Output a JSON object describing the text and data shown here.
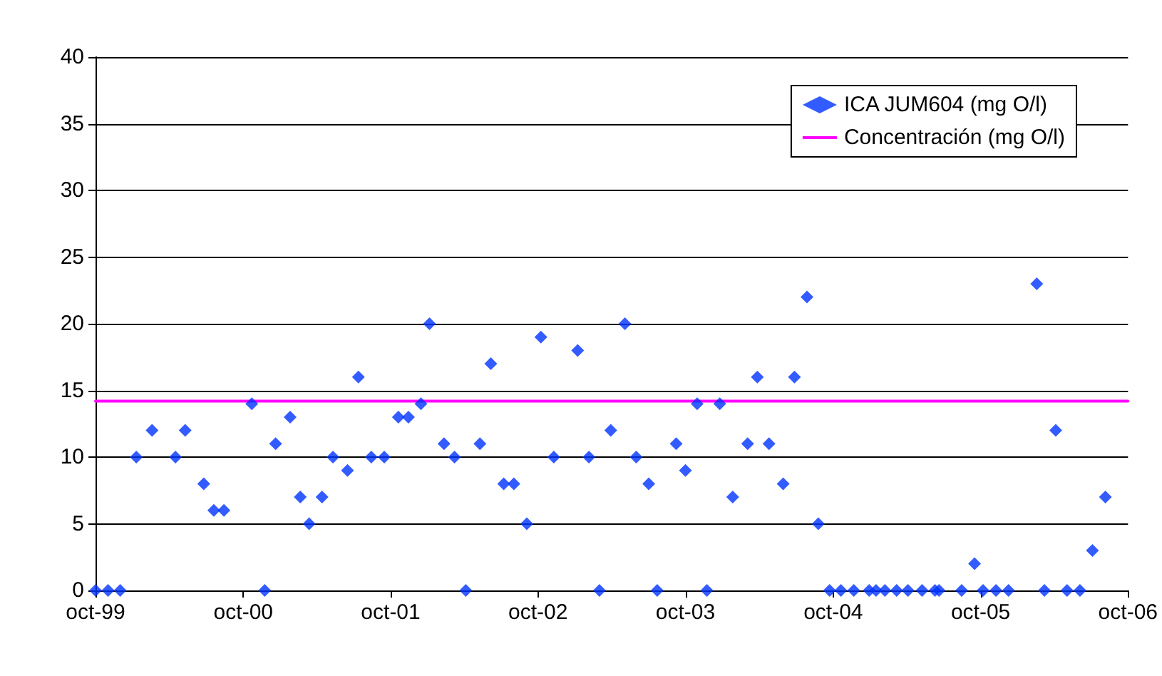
{
  "chart_data": {
    "type": "scatter",
    "xlim": [
      "1999-10-01",
      "2006-10-01"
    ],
    "xticks": [
      {
        "value": "1999-10-01",
        "label": "oct-99"
      },
      {
        "value": "2000-10-01",
        "label": "oct-00"
      },
      {
        "value": "2001-10-01",
        "label": "oct-01"
      },
      {
        "value": "2002-10-01",
        "label": "oct-02"
      },
      {
        "value": "2003-10-01",
        "label": "oct-03"
      },
      {
        "value": "2004-10-01",
        "label": "oct-04"
      },
      {
        "value": "2005-10-01",
        "label": "oct-05"
      },
      {
        "value": "2006-10-01",
        "label": "oct-06"
      }
    ],
    "ylim": [
      0,
      40
    ],
    "yticks": [
      0,
      5,
      10,
      15,
      20,
      25,
      30,
      35,
      40
    ],
    "grid": "y",
    "legend": "top right",
    "marker": "diamond",
    "series": [
      {
        "name": "ICA JUM604 (mg O/l)",
        "color": "#0033ff",
        "x": [
          "1999-10-01",
          "1999-11-01",
          "1999-12-01",
          "2000-01-10",
          "2000-02-18",
          "2000-04-16",
          "2000-05-10",
          "2000-06-25",
          "2000-07-20",
          "2000-08-14",
          "2000-10-22",
          "2000-11-23",
          "2000-12-20",
          "2001-01-25",
          "2001-02-19",
          "2001-03-13",
          "2001-04-14",
          "2001-05-11",
          "2001-06-16",
          "2001-07-13",
          "2001-08-14",
          "2001-09-15",
          "2001-10-20",
          "2001-11-14",
          "2001-12-15",
          "2002-01-05",
          "2002-02-10",
          "2002-03-08",
          "2002-04-05",
          "2002-05-10",
          "2002-06-06",
          "2002-07-08",
          "2002-08-02",
          "2002-09-03",
          "2002-10-08",
          "2002-11-09",
          "2003-01-07",
          "2003-02-04",
          "2003-03-02",
          "2003-03-30",
          "2003-05-04",
          "2003-06-01",
          "2003-07-02",
          "2003-07-23",
          "2003-09-08",
          "2003-10-01",
          "2003-10-30",
          "2003-11-23",
          "2003-12-25",
          "2004-01-26",
          "2004-03-03",
          "2004-03-27",
          "2004-04-25",
          "2004-05-30",
          "2004-06-27",
          "2004-07-28",
          "2004-08-25",
          "2004-09-22",
          "2004-10-20",
          "2004-11-21",
          "2004-12-29",
          "2005-01-15",
          "2005-02-06",
          "2005-03-07",
          "2005-04-04",
          "2005-05-09",
          "2005-06-10",
          "2005-06-20",
          "2005-08-15",
          "2005-09-16",
          "2005-10-07",
          "2005-11-08",
          "2005-12-09",
          "2006-02-17",
          "2006-03-08",
          "2006-04-05",
          "2006-05-03",
          "2006-06-04",
          "2006-07-05",
          "2006-08-06"
        ],
        "values": [
          0,
          0,
          0,
          10,
          12,
          10,
          12,
          8,
          6,
          6,
          14,
          0,
          11,
          13,
          7,
          5,
          7,
          10,
          9,
          16,
          10,
          10,
          13,
          13,
          14,
          20,
          11,
          10,
          0,
          11,
          17,
          8,
          8,
          5,
          19,
          10,
          18,
          10,
          0,
          12,
          20,
          10,
          8,
          0,
          11,
          9,
          14,
          0,
          14,
          7,
          11,
          16,
          11,
          8,
          16,
          22,
          5,
          0,
          0,
          0,
          0,
          0,
          0,
          0,
          0,
          0,
          0,
          0,
          0,
          2,
          0,
          0,
          0,
          23,
          0,
          12,
          0,
          0,
          3,
          7
        ]
      },
      {
        "name": "Concentración (mg O/l)",
        "type": "line",
        "color": "#ff00ff",
        "marker": "none",
        "line_style": "solid",
        "x": [
          "1999-10-01",
          "2006-10-01"
        ],
        "values": [
          14.2,
          14.2
        ]
      }
    ]
  }
}
